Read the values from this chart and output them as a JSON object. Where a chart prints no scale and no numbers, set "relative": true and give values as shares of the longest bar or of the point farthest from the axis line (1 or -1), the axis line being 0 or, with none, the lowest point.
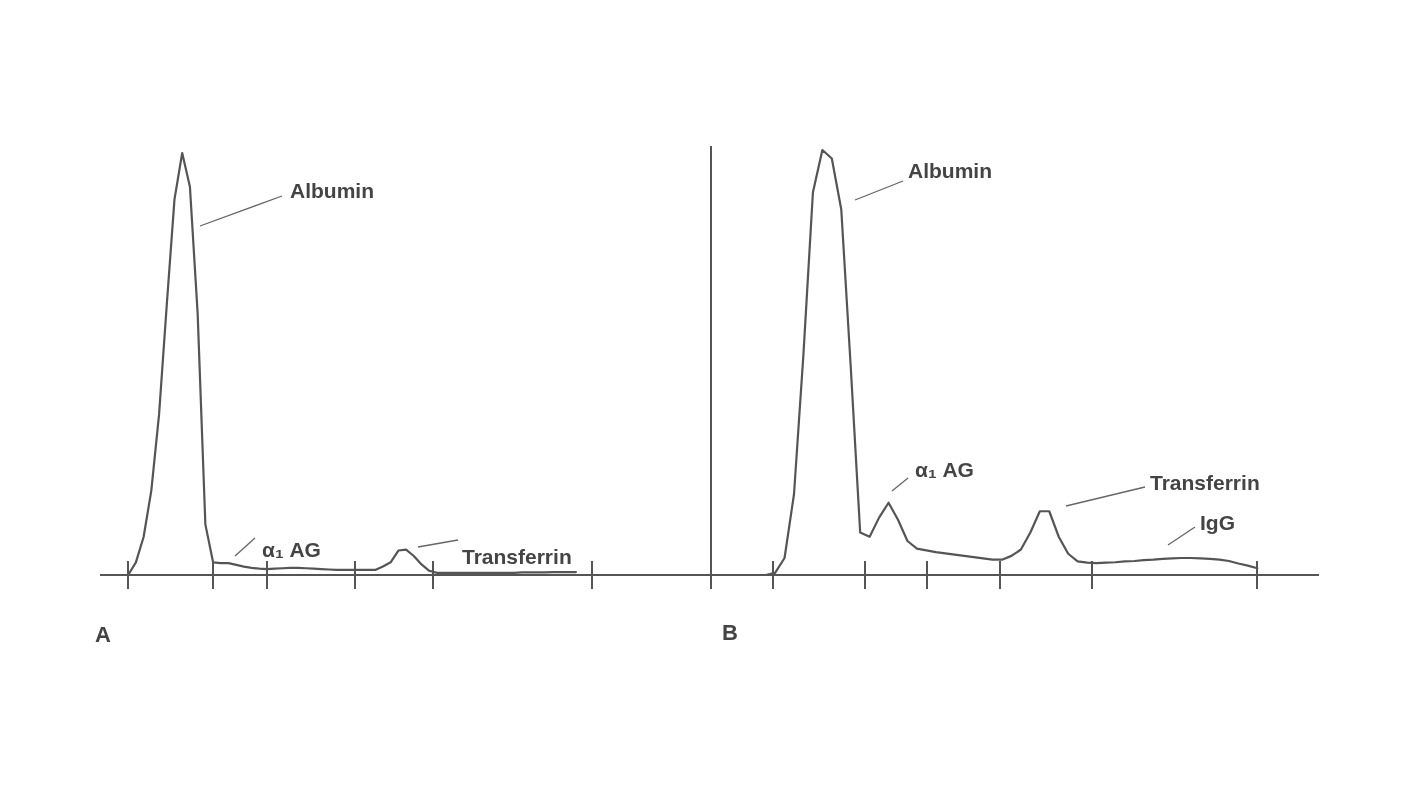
{
  "chart_data": [
    {
      "type": "line",
      "title": "A",
      "relative": true,
      "line_style": "solid",
      "annotations": [
        "Albumin",
        "α₁ AG",
        "Transferrin"
      ],
      "categories": [
        null,
        null,
        null,
        null,
        null,
        null,
        null,
        null,
        null,
        null,
        null,
        null,
        null,
        null,
        null,
        null,
        null,
        null,
        null,
        null,
        null,
        null,
        null,
        null,
        null,
        null,
        null,
        null,
        null,
        null,
        null,
        null,
        null,
        null,
        null,
        null,
        null,
        null,
        null,
        null,
        null,
        null,
        null,
        null,
        null,
        null,
        null,
        null,
        null,
        null,
        null,
        null,
        null,
        null,
        null,
        null,
        null,
        null,
        null,
        null,
        null,
        null,
        null,
        null,
        null,
        null,
        null,
        null,
        null,
        null,
        null,
        null,
        null,
        null,
        null,
        null
      ],
      "series": [
        {
          "color": "#555555",
          "values": [
            null,
            null,
            null,
            0,
            0.03,
            0.09,
            0.2,
            0.38,
            0.64,
            0.89,
            1,
            0.92,
            0.62,
            0.12,
            0.03,
            0.028,
            0.028,
            0.024,
            0.02,
            0.017,
            0.015,
            0.014,
            0.015,
            0.016,
            0.017,
            0.017,
            0.016,
            0.015,
            0.014,
            0.013,
            0.012,
            0.012,
            0.012,
            0.012,
            0.012,
            0.012,
            0.02,
            0.03,
            0.058,
            0.06,
            0.045,
            0.025,
            0.01,
            0.005,
            0.005,
            0.005,
            0.005,
            0.005,
            0.005,
            0.005,
            0.005,
            0.005,
            0.005,
            0.005,
            0.006,
            0.006,
            0.006,
            0.006,
            0.007,
            0.007,
            0.007,
            0.007,
            null,
            null,
            null,
            null,
            null,
            null,
            null,
            null,
            null,
            null,
            null,
            null,
            null,
            null
          ]
        }
      ]
    },
    {
      "type": "line",
      "title": "B",
      "relative": true,
      "line_style": "solid",
      "annotations": [
        "Albumin",
        "α₁ AG",
        "Transferrin",
        "IgG"
      ],
      "categories": [
        null,
        null,
        null,
        null,
        null,
        null,
        null,
        null,
        null,
        null,
        null,
        null,
        null,
        null,
        null,
        null,
        null,
        null,
        null,
        null,
        null,
        null,
        null,
        null,
        null,
        null,
        null,
        null,
        null,
        null,
        null,
        null,
        null,
        null,
        null,
        null,
        null,
        null,
        null,
        null,
        null,
        null,
        null,
        null,
        null,
        null,
        null,
        null,
        null,
        null,
        null,
        null,
        null,
        null,
        null,
        null,
        null,
        null,
        null,
        null,
        null,
        null,
        null,
        null,
        null,
        null,
        null
      ],
      "series": [
        {
          "color": "#555555",
          "values": [
            null,
            null,
            0,
            0,
            0,
            0,
            0,
            0,
            0,
            0.005,
            0.04,
            0.19,
            0.52,
            0.9,
            1,
            0.98,
            0.86,
            0.49,
            0.1,
            0.09,
            0.135,
            0.17,
            0.13,
            0.08,
            0.062,
            0.058,
            0.054,
            0.051,
            0.048,
            0.045,
            0.042,
            0.039,
            0.036,
            0.036,
            0.045,
            0.06,
            0.1,
            0.15,
            0.15,
            0.09,
            0.05,
            0.032,
            0.029,
            0.028,
            0.029,
            0.03,
            0.032,
            0.033,
            0.035,
            0.036,
            0.038,
            0.039,
            0.04,
            0.04,
            0.039,
            0.038,
            0.036,
            0.033,
            0.027,
            0.022,
            0.016,
            null,
            null,
            null,
            null,
            null,
            null
          ]
        }
      ]
    }
  ]
}
